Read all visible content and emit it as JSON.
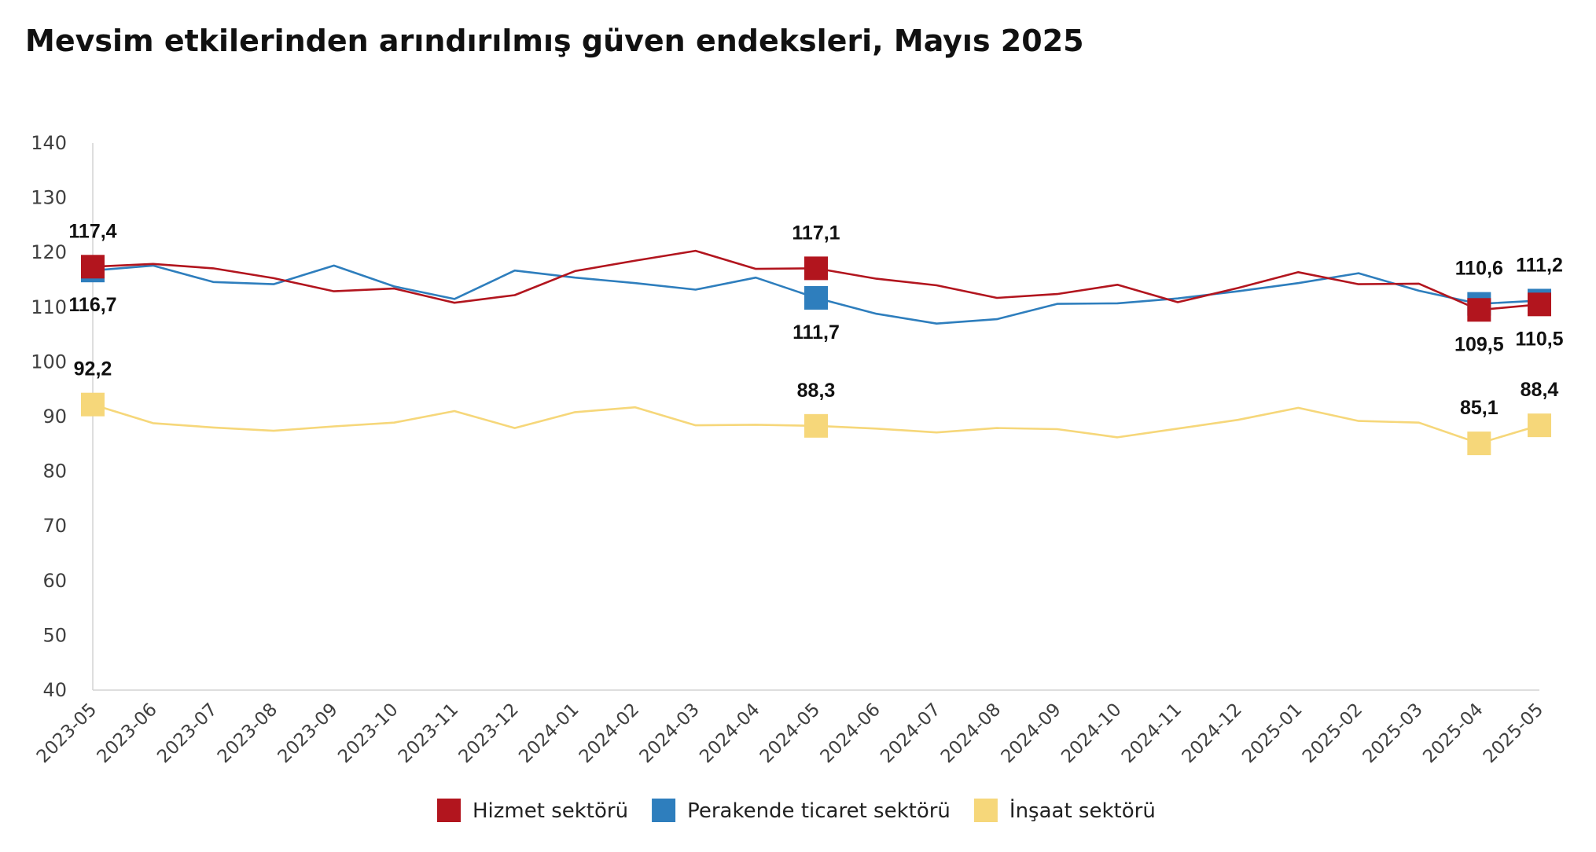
{
  "chart_data": {
    "type": "line",
    "title": "Mevsim etkilerinden arındırılmış güven endeksleri, Mayıs 2025",
    "xlabel": "",
    "ylabel": "",
    "ylim": [
      40,
      140
    ],
    "yticks": [
      40,
      50,
      60,
      70,
      80,
      90,
      100,
      110,
      120,
      130,
      140
    ],
    "grid": false,
    "legend_position": "bottom",
    "categories": [
      "2023-05",
      "2023-06",
      "2023-07",
      "2023-08",
      "2023-09",
      "2023-10",
      "2023-11",
      "2023-12",
      "2024-01",
      "2024-02",
      "2024-03",
      "2024-04",
      "2024-05",
      "2024-06",
      "2024-07",
      "2024-08",
      "2024-09",
      "2024-10",
      "2024-11",
      "2024-12",
      "2025-01",
      "2025-02",
      "2025-03",
      "2025-04",
      "2025-05"
    ],
    "series": [
      {
        "name": "Hizmet sektörü",
        "color": "#b2151e",
        "values": [
          117.4,
          117.9,
          117.1,
          115.3,
          112.9,
          113.4,
          110.8,
          112.2,
          116.6,
          118.5,
          120.3,
          117.0,
          117.1,
          115.2,
          114.0,
          111.7,
          112.4,
          114.1,
          110.9,
          113.5,
          116.4,
          114.2,
          114.3,
          109.5,
          110.5
        ],
        "labels": {
          "0": "117,4",
          "12": "117,1",
          "23": "109,5",
          "24": "110,5"
        },
        "label_side": {
          "0": "above",
          "12": "above",
          "23": "below",
          "24": "below"
        }
      },
      {
        "name": "Perakende ticaret sektörü",
        "color": "#2e7ebd",
        "values": [
          116.7,
          117.6,
          114.6,
          114.2,
          117.6,
          113.8,
          111.5,
          116.7,
          115.4,
          114.4,
          113.2,
          115.4,
          111.7,
          108.8,
          107.0,
          107.8,
          110.6,
          110.7,
          111.6,
          112.9,
          114.4,
          116.2,
          113.0,
          110.6,
          111.2
        ],
        "labels": {
          "0": "116,7",
          "12": "111,7",
          "23": "110,6",
          "24": "111,2"
        },
        "label_side": {
          "0": "below",
          "12": "below",
          "23": "above",
          "24": "above"
        }
      },
      {
        "name": "İnşaat sektörü",
        "color": "#f6d77a",
        "values": [
          92.2,
          88.8,
          88.0,
          87.4,
          88.2,
          88.9,
          91.0,
          87.9,
          90.8,
          91.7,
          88.4,
          88.5,
          88.3,
          87.8,
          87.1,
          87.9,
          87.7,
          86.2,
          87.8,
          89.4,
          91.6,
          89.2,
          88.9,
          85.1,
          88.4
        ],
        "labels": {
          "0": "92,2",
          "12": "88,3",
          "23": "85,1",
          "24": "88,4"
        },
        "label_side": {
          "0": "above",
          "12": "above",
          "23": "above",
          "24": "above"
        }
      }
    ]
  }
}
